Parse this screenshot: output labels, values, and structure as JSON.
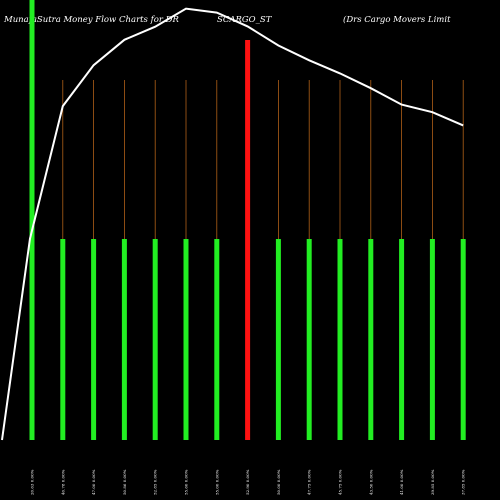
{
  "chart_data": {
    "type": "bar",
    "title_parts": [
      "MunafaSutra  Money Flow  Charts for DR",
      "SCARGO_ST",
      "(Drs Cargo  Movers Limit"
    ],
    "categories": [
      "20.63 0.00%",
      "40.78 0.00%",
      "47.00 0.00%",
      "50.86 0.00%",
      "52.85 0.00%",
      "55.60 0.00%",
      "55.00 0.00%",
      "52.90 0.00%",
      "50.00 0.00%",
      "47.75 0.00%",
      "45.75 0.00%",
      "43.50 0.00%",
      "41.00 0.00%",
      "39.85 0.00%",
      "37.85 0.00%"
    ],
    "series": [
      {
        "values": [
          100,
          50,
          50,
          50,
          50,
          50,
          50,
          100,
          50,
          50,
          50,
          50,
          50,
          50,
          50
        ],
        "colors": [
          "#22ee22",
          "#22ee22",
          "#22ee22",
          "#22ee22",
          "#22ee22",
          "#22ee22",
          "#22ee22",
          "#ff1111",
          "#22ee22",
          "#22ee22",
          "#22ee22",
          "#22ee22",
          "#22ee22",
          "#22ee22",
          "#22ee22"
        ]
      }
    ],
    "price_line": [
      -10,
      20.63,
      40.78,
      47.0,
      50.86,
      52.85,
      55.6,
      55.0,
      52.9,
      50.0,
      47.75,
      45.75,
      43.5,
      41.0,
      39.85,
      37.85
    ],
    "price_range": [
      -10,
      56
    ],
    "colors": {
      "background": "#000000",
      "up": "#22ee22",
      "down": "#ff1111",
      "line": "#ffffff",
      "grid": "#b06018"
    }
  }
}
